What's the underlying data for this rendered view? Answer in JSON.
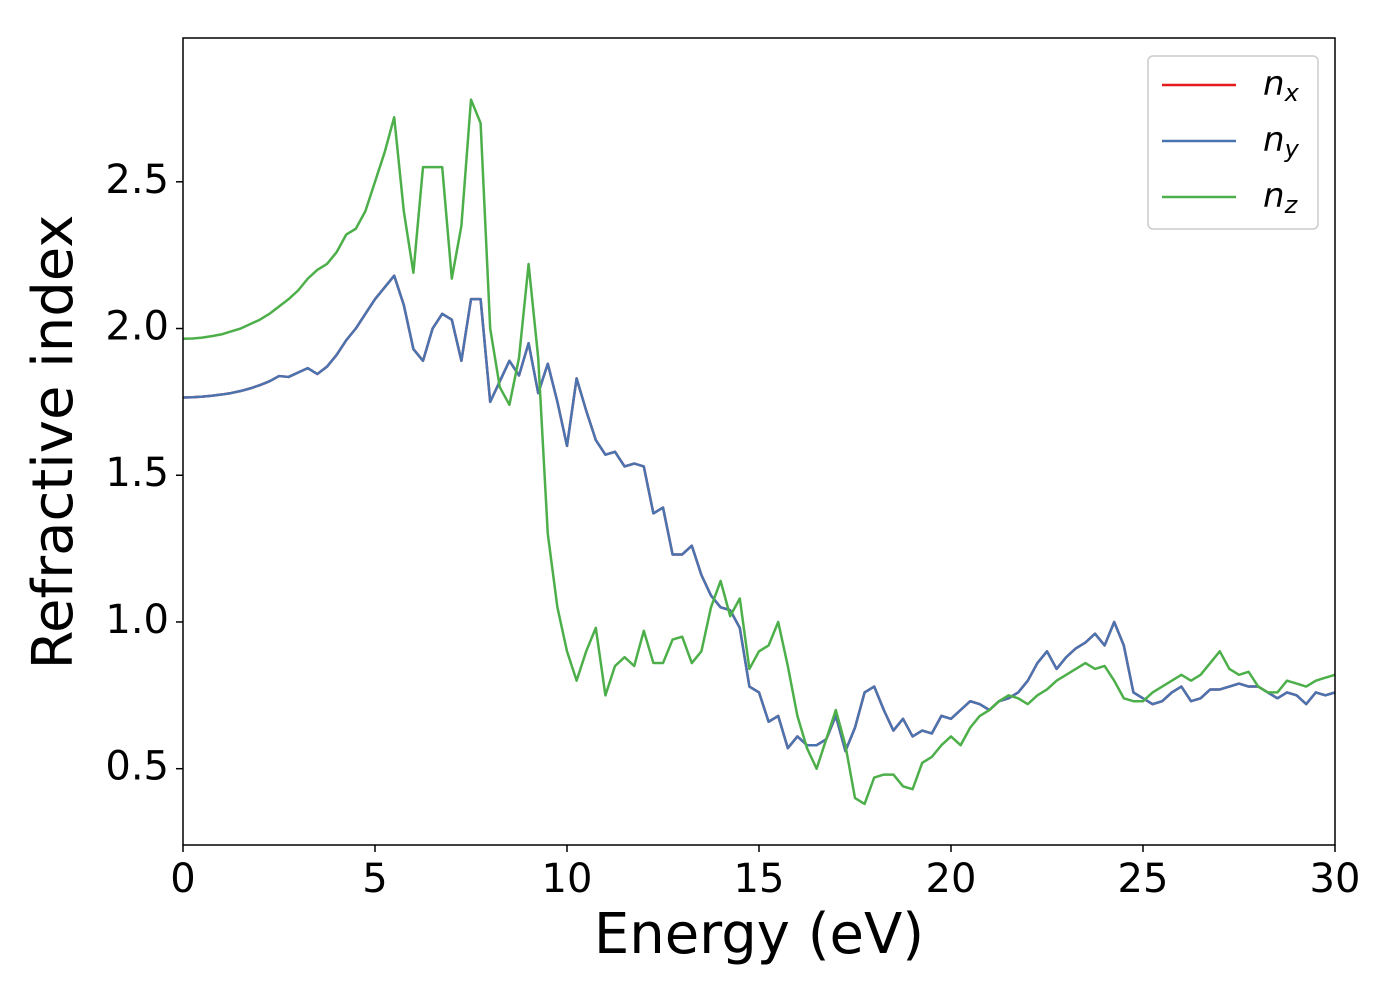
{
  "chart_data": {
    "type": "line",
    "xlabel": "Energy (eV)",
    "ylabel": "Refractive index",
    "x": [
      0,
      0.25,
      0.5,
      0.75,
      1,
      1.25,
      1.5,
      1.75,
      2,
      2.25,
      2.5,
      2.75,
      3,
      3.25,
      3.5,
      3.75,
      4,
      4.25,
      4.5,
      4.75,
      5,
      5.25,
      5.5,
      5.75,
      6,
      6.25,
      6.5,
      6.75,
      7,
      7.25,
      7.5,
      7.75,
      8,
      8.25,
      8.5,
      8.75,
      9,
      9.25,
      9.5,
      9.75,
      10,
      10.25,
      10.5,
      10.75,
      11,
      11.25,
      11.5,
      11.75,
      12,
      12.25,
      12.5,
      12.75,
      13,
      13.25,
      13.5,
      13.75,
      14,
      14.25,
      14.5,
      14.75,
      15,
      15.25,
      15.5,
      15.75,
      16,
      16.25,
      16.5,
      16.75,
      17,
      17.25,
      17.5,
      17.75,
      18,
      18.25,
      18.5,
      18.75,
      19,
      19.25,
      19.5,
      19.75,
      20,
      20.25,
      20.5,
      20.75,
      21,
      21.25,
      21.5,
      21.75,
      22,
      22.25,
      22.5,
      22.75,
      23,
      23.25,
      23.5,
      23.75,
      24,
      24.25,
      24.5,
      24.75,
      25,
      25.25,
      25.5,
      25.75,
      26,
      26.25,
      26.5,
      26.75,
      27,
      27.25,
      27.5,
      27.75,
      28,
      28.25,
      28.5,
      28.75,
      29,
      29.25,
      29.5,
      29.75,
      30
    ],
    "series": [
      {
        "name": "n_x",
        "color": "#e41a1c",
        "values": [
          1.765,
          1.766,
          1.768,
          1.771,
          1.775,
          1.78,
          1.787,
          1.796,
          1.807,
          1.82,
          1.838,
          1.835,
          1.85,
          1.865,
          1.845,
          1.87,
          1.91,
          1.96,
          2.0,
          2.05,
          2.1,
          2.14,
          2.18,
          2.08,
          1.93,
          1.89,
          2.0,
          2.05,
          2.03,
          1.89,
          2.1,
          2.1,
          1.75,
          1.82,
          1.89,
          1.84,
          1.95,
          1.78,
          1.88,
          1.75,
          1.6,
          1.83,
          1.72,
          1.62,
          1.57,
          1.58,
          1.53,
          1.54,
          1.53,
          1.37,
          1.39,
          1.23,
          1.23,
          1.26,
          1.16,
          1.09,
          1.05,
          1.04,
          0.98,
          0.78,
          0.76,
          0.66,
          0.68,
          0.57,
          0.61,
          0.58,
          0.58,
          0.6,
          0.68,
          0.56,
          0.64,
          0.76,
          0.78,
          0.7,
          0.63,
          0.67,
          0.61,
          0.63,
          0.62,
          0.68,
          0.67,
          0.7,
          0.73,
          0.72,
          0.7,
          0.73,
          0.74,
          0.76,
          0.8,
          0.86,
          0.9,
          0.84,
          0.88,
          0.91,
          0.93,
          0.96,
          0.92,
          1.0,
          0.92,
          0.76,
          0.74,
          0.72,
          0.73,
          0.76,
          0.78,
          0.73,
          0.74,
          0.77,
          0.77,
          0.78,
          0.79,
          0.78,
          0.78,
          0.76,
          0.74,
          0.76,
          0.75,
          0.72,
          0.76,
          0.75,
          0.76
        ]
      },
      {
        "name": "n_y",
        "color": "#4a74b0",
        "values": [
          1.765,
          1.766,
          1.768,
          1.771,
          1.775,
          1.78,
          1.787,
          1.796,
          1.807,
          1.82,
          1.838,
          1.835,
          1.85,
          1.865,
          1.845,
          1.87,
          1.91,
          1.96,
          2.0,
          2.05,
          2.1,
          2.14,
          2.18,
          2.08,
          1.93,
          1.89,
          2.0,
          2.05,
          2.03,
          1.89,
          2.1,
          2.1,
          1.75,
          1.82,
          1.89,
          1.84,
          1.95,
          1.78,
          1.88,
          1.75,
          1.6,
          1.83,
          1.72,
          1.62,
          1.57,
          1.58,
          1.53,
          1.54,
          1.53,
          1.37,
          1.39,
          1.23,
          1.23,
          1.26,
          1.16,
          1.09,
          1.05,
          1.04,
          0.98,
          0.78,
          0.76,
          0.66,
          0.68,
          0.57,
          0.61,
          0.58,
          0.58,
          0.6,
          0.68,
          0.56,
          0.64,
          0.76,
          0.78,
          0.7,
          0.63,
          0.67,
          0.61,
          0.63,
          0.62,
          0.68,
          0.67,
          0.7,
          0.73,
          0.72,
          0.7,
          0.73,
          0.74,
          0.76,
          0.8,
          0.86,
          0.9,
          0.84,
          0.88,
          0.91,
          0.93,
          0.96,
          0.92,
          1.0,
          0.92,
          0.76,
          0.74,
          0.72,
          0.73,
          0.76,
          0.78,
          0.73,
          0.74,
          0.77,
          0.77,
          0.78,
          0.79,
          0.78,
          0.78,
          0.76,
          0.74,
          0.76,
          0.75,
          0.72,
          0.76,
          0.75,
          0.76
        ]
      },
      {
        "name": "n_z",
        "color": "#4daf4a",
        "values": [
          1.965,
          1.966,
          1.969,
          1.974,
          1.98,
          1.99,
          2.0,
          2.015,
          2.03,
          2.05,
          2.075,
          2.1,
          2.13,
          2.17,
          2.2,
          2.22,
          2.26,
          2.32,
          2.34,
          2.4,
          2.5,
          2.6,
          2.72,
          2.4,
          2.19,
          2.55,
          2.55,
          2.55,
          2.17,
          2.35,
          2.78,
          2.7,
          2.0,
          1.8,
          1.74,
          1.9,
          2.22,
          1.9,
          1.3,
          1.05,
          0.9,
          0.8,
          0.9,
          0.98,
          0.75,
          0.85,
          0.88,
          0.85,
          0.97,
          0.86,
          0.86,
          0.94,
          0.95,
          0.86,
          0.9,
          1.05,
          1.14,
          1.02,
          1.08,
          0.84,
          0.9,
          0.92,
          1.0,
          0.85,
          0.68,
          0.57,
          0.5,
          0.6,
          0.7,
          0.58,
          0.4,
          0.38,
          0.47,
          0.48,
          0.48,
          0.44,
          0.43,
          0.52,
          0.54,
          0.58,
          0.61,
          0.58,
          0.64,
          0.68,
          0.7,
          0.73,
          0.75,
          0.74,
          0.72,
          0.75,
          0.77,
          0.8,
          0.82,
          0.84,
          0.86,
          0.84,
          0.85,
          0.8,
          0.74,
          0.73,
          0.73,
          0.76,
          0.78,
          0.8,
          0.82,
          0.8,
          0.82,
          0.86,
          0.9,
          0.84,
          0.82,
          0.83,
          0.78,
          0.76,
          0.76,
          0.8,
          0.79,
          0.78,
          0.8,
          0.81,
          0.82
        ]
      }
    ],
    "xlim": [
      0,
      30
    ],
    "xticks": [
      0,
      5,
      10,
      15,
      20,
      25,
      30
    ],
    "ylim": [
      0.24,
      2.99
    ],
    "yticks": [
      {
        "value": 0.5,
        "label": "0.5"
      },
      {
        "value": 1,
        "label": "1.0"
      },
      {
        "value": 1.5,
        "label": "1.5"
      },
      {
        "value": 2,
        "label": "2.0"
      },
      {
        "value": 2.5,
        "label": "2.5"
      }
    ],
    "legend": "upper right",
    "grid": false
  }
}
